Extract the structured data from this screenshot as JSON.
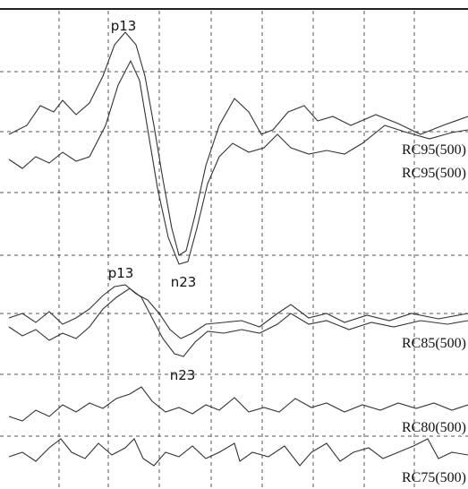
{
  "annotations": {
    "upper_peak": "p13",
    "upper_trough": "n23",
    "lower_peak": "p13",
    "lower_trough": "n23",
    "trace_labels": [
      "RC95(500)",
      "RC95(500)",
      "RC85(500)",
      "RC80(500)",
      "RC75(500)"
    ]
  }
}
